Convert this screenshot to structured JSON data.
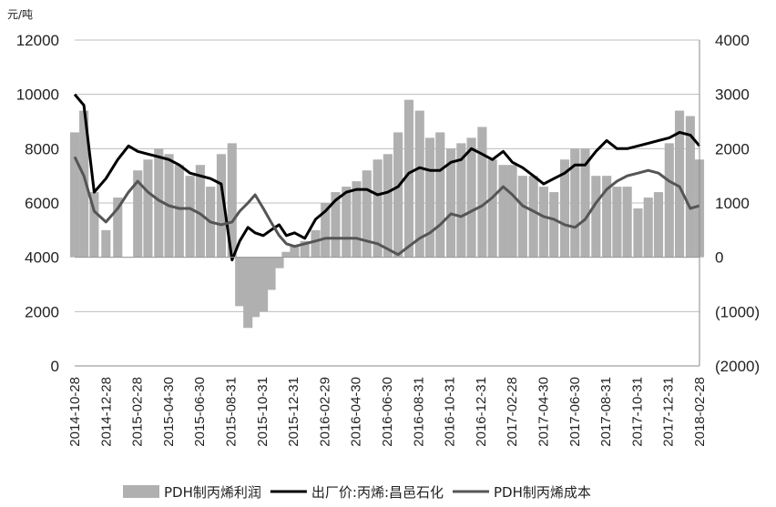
{
  "chart_data": {
    "type": "bar+line",
    "unit_label": "元/吨",
    "left_axis": {
      "ylim": [
        0,
        12000
      ],
      "ticks": [
        "0",
        "2000",
        "4000",
        "6000",
        "8000",
        "10000",
        "12000"
      ]
    },
    "right_axis": {
      "ylim": [
        -2000,
        4000
      ],
      "ticks": [
        "(2000)",
        "(1000)",
        "0",
        "1000",
        "2000",
        "3000",
        "4000"
      ]
    },
    "x_tick_labels": [
      "2014-10-28",
      "2014-12-28",
      "2015-02-28",
      "2015-04-30",
      "2015-06-30",
      "2015-08-31",
      "2015-10-31",
      "2015-12-31",
      "2016-02-29",
      "2016-04-30",
      "2016-06-30",
      "2016-08-31",
      "2016-10-31",
      "2016-12-31",
      "2017-02-28",
      "2017-04-30",
      "2017-06-30",
      "2017-08-31",
      "2017-10-31",
      "2017-12-31",
      "2018-02-28"
    ],
    "grid": "horizontal",
    "legend_position": "bottom",
    "series": [
      {
        "name": "PDH制丙烯利润",
        "type": "bar",
        "axis": "right",
        "color": "#b0b0b0",
        "x": [
          "2014-10-28",
          "2014-11-15",
          "2014-12-05",
          "2014-12-28",
          "2015-01-20",
          "2015-02-28",
          "2015-03-20",
          "2015-04-10",
          "2015-04-30",
          "2015-05-20",
          "2015-06-10",
          "2015-06-30",
          "2015-07-20",
          "2015-08-10",
          "2015-08-31",
          "2015-09-15",
          "2015-10-01",
          "2015-10-15",
          "2015-10-31",
          "2015-11-15",
          "2015-12-01",
          "2015-12-15",
          "2015-12-31",
          "2016-01-20",
          "2016-02-10",
          "2016-02-29",
          "2016-03-20",
          "2016-04-10",
          "2016-04-30",
          "2016-05-20",
          "2016-06-10",
          "2016-06-30",
          "2016-07-20",
          "2016-08-10",
          "2016-08-31",
          "2016-09-20",
          "2016-10-10",
          "2016-10-31",
          "2016-11-20",
          "2016-12-10",
          "2016-12-31",
          "2017-01-20",
          "2017-02-10",
          "2017-02-28",
          "2017-03-20",
          "2017-04-10",
          "2017-04-30",
          "2017-05-20",
          "2017-06-10",
          "2017-06-30",
          "2017-07-20",
          "2017-08-10",
          "2017-08-31",
          "2017-09-20",
          "2017-10-10",
          "2017-10-31",
          "2017-11-20",
          "2017-12-10",
          "2017-12-31",
          "2018-01-20",
          "2018-02-10",
          "2018-02-28"
        ],
        "values": [
          2300,
          2700,
          1200,
          500,
          1100,
          1600,
          1800,
          2000,
          1900,
          1700,
          1500,
          1700,
          1300,
          1900,
          2100,
          -900,
          -1300,
          -1100,
          -1000,
          -600,
          -200,
          100,
          200,
          300,
          500,
          1000,
          1200,
          1300,
          1400,
          1600,
          1800,
          1900,
          2300,
          2900,
          2700,
          2200,
          2300,
          2000,
          2100,
          2200,
          2400,
          1800,
          1700,
          1700,
          1500,
          1500,
          1300,
          1200,
          1800,
          2000,
          2000,
          1500,
          1500,
          1300,
          1300,
          900,
          1100,
          1200,
          2100,
          2700,
          2600,
          1800
        ]
      },
      {
        "name": "出厂价:丙烯:昌邑石化",
        "type": "line",
        "axis": "left",
        "color": "#000000",
        "x": [
          "2014-10-28",
          "2014-11-15",
          "2014-12-05",
          "2014-12-28",
          "2015-01-20",
          "2015-02-10",
          "2015-02-28",
          "2015-03-20",
          "2015-04-10",
          "2015-04-30",
          "2015-05-20",
          "2015-06-10",
          "2015-06-30",
          "2015-07-20",
          "2015-08-10",
          "2015-08-31",
          "2015-09-15",
          "2015-10-01",
          "2015-10-15",
          "2015-10-31",
          "2015-11-15",
          "2015-12-01",
          "2015-12-15",
          "2015-12-31",
          "2016-01-20",
          "2016-02-10",
          "2016-02-29",
          "2016-03-20",
          "2016-04-10",
          "2016-04-30",
          "2016-05-20",
          "2016-06-10",
          "2016-06-30",
          "2016-07-20",
          "2016-08-10",
          "2016-08-31",
          "2016-09-20",
          "2016-10-10",
          "2016-10-31",
          "2016-11-20",
          "2016-12-10",
          "2016-12-31",
          "2017-01-20",
          "2017-02-10",
          "2017-02-28",
          "2017-03-20",
          "2017-04-10",
          "2017-04-30",
          "2017-05-20",
          "2017-06-10",
          "2017-06-30",
          "2017-07-20",
          "2017-08-10",
          "2017-08-31",
          "2017-09-20",
          "2017-10-10",
          "2017-10-31",
          "2017-11-20",
          "2017-12-10",
          "2017-12-31",
          "2018-01-20",
          "2018-02-10",
          "2018-02-28"
        ],
        "values": [
          10000,
          9600,
          6400,
          6900,
          7600,
          8100,
          7900,
          7800,
          7700,
          7600,
          7400,
          7100,
          7000,
          6900,
          6700,
          3900,
          4600,
          5100,
          4900,
          4800,
          5000,
          5200,
          4800,
          4900,
          4700,
          5400,
          5700,
          6100,
          6400,
          6500,
          6500,
          6300,
          6400,
          6600,
          7100,
          7300,
          7200,
          7200,
          7500,
          7600,
          8000,
          7800,
          7600,
          7900,
          7500,
          7300,
          7000,
          6700,
          6900,
          7100,
          7400,
          7400,
          7900,
          8300,
          8000,
          8000,
          8100,
          8200,
          8300,
          8400,
          8600,
          8500,
          8100
        ]
      },
      {
        "name": "PDH制丙烯成本",
        "type": "line",
        "axis": "left",
        "color": "#555555",
        "x": [
          "2014-10-28",
          "2014-11-15",
          "2014-12-05",
          "2014-12-28",
          "2015-01-20",
          "2015-02-10",
          "2015-02-28",
          "2015-03-20",
          "2015-04-10",
          "2015-04-30",
          "2015-05-20",
          "2015-06-10",
          "2015-06-30",
          "2015-07-20",
          "2015-08-10",
          "2015-08-31",
          "2015-09-15",
          "2015-10-01",
          "2015-10-15",
          "2015-10-31",
          "2015-11-15",
          "2015-12-01",
          "2015-12-15",
          "2015-12-31",
          "2016-01-20",
          "2016-02-10",
          "2016-02-29",
          "2016-03-20",
          "2016-04-10",
          "2016-04-30",
          "2016-05-20",
          "2016-06-10",
          "2016-06-30",
          "2016-07-20",
          "2016-08-10",
          "2016-08-31",
          "2016-09-20",
          "2016-10-10",
          "2016-10-31",
          "2016-11-20",
          "2016-12-10",
          "2016-12-31",
          "2017-01-20",
          "2017-02-10",
          "2017-02-28",
          "2017-03-20",
          "2017-04-10",
          "2017-04-30",
          "2017-05-20",
          "2017-06-10",
          "2017-06-30",
          "2017-07-20",
          "2017-08-10",
          "2017-08-31",
          "2017-09-20",
          "2017-10-10",
          "2017-10-31",
          "2017-11-20",
          "2017-12-10",
          "2017-12-31",
          "2018-01-20",
          "2018-02-10",
          "2018-02-28"
        ],
        "values": [
          7700,
          7000,
          5700,
          5300,
          5800,
          6400,
          6800,
          6400,
          6100,
          5900,
          5800,
          5800,
          5600,
          5300,
          5200,
          5300,
          5700,
          6000,
          6300,
          5800,
          5300,
          4800,
          4500,
          4400,
          4500,
          4600,
          4700,
          4700,
          4700,
          4700,
          4600,
          4500,
          4300,
          4100,
          4400,
          4700,
          4900,
          5200,
          5600,
          5500,
          5700,
          5900,
          6200,
          6600,
          6300,
          5900,
          5700,
          5500,
          5400,
          5200,
          5100,
          5400,
          6000,
          6500,
          6800,
          7000,
          7100,
          7200,
          7100,
          6800,
          6600,
          5800,
          5900
        ]
      }
    ]
  }
}
